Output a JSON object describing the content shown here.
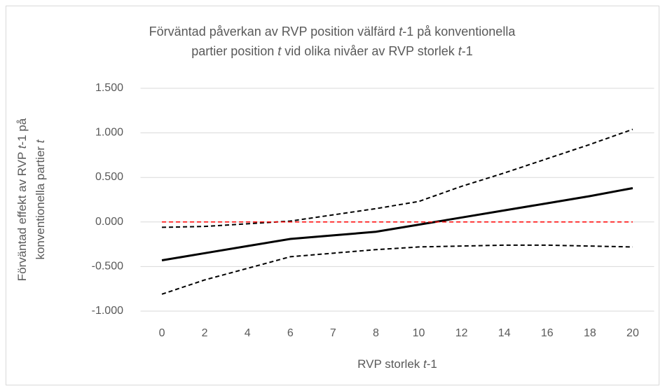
{
  "chart_data": {
    "type": "line",
    "title": [
      "Förväntad påverkan av RVP position välfärd t-1 på konventionella",
      "partier position t vid olika nivåer av RVP storlek t-1"
    ],
    "x_label": "RVP storlek t-1",
    "y_label": [
      "Förväntad effekt av RVP t-1 på",
      "konventionella partier t"
    ],
    "categories": [
      "0",
      "2",
      "4",
      "6",
      "7",
      "8",
      "10",
      "12",
      "14",
      "16",
      "18",
      "20"
    ],
    "series": [
      {
        "color": "#000000",
        "dashed": false,
        "width": 3,
        "values": [
          -0.43,
          -0.35,
          -0.27,
          -0.19,
          -0.15,
          -0.11,
          -0.03,
          0.05,
          0.13,
          0.21,
          0.29,
          0.38
        ]
      },
      {
        "color": "#000000",
        "dashed": true,
        "width": 2,
        "values": [
          -0.06,
          -0.05,
          -0.02,
          0.01,
          0.08,
          0.15,
          0.23,
          0.4,
          0.55,
          0.71,
          0.87,
          1.04
        ]
      },
      {
        "color": "#000000",
        "dashed": true,
        "width": 2,
        "values": [
          -0.81,
          -0.65,
          -0.52,
          -0.39,
          -0.35,
          -0.31,
          -0.28,
          -0.27,
          -0.26,
          -0.26,
          -0.27,
          -0.28
        ]
      },
      {
        "color": "#ff0000",
        "dashed": true,
        "width": 1.5,
        "values": [
          0,
          0,
          0,
          0,
          0,
          0,
          0,
          0,
          0,
          0,
          0,
          0
        ]
      }
    ],
    "ylim": [
      -1,
      1.5
    ],
    "yticks": [
      {
        "value": -1,
        "label": "-1.000"
      },
      {
        "value": -0.5,
        "label": "-0.500"
      },
      {
        "value": 0,
        "label": "0.000"
      },
      {
        "value": 0.5,
        "label": "0.500"
      },
      {
        "value": 1,
        "label": "1.000"
      },
      {
        "value": 1.5,
        "label": "1.500"
      }
    ],
    "grid": true
  }
}
